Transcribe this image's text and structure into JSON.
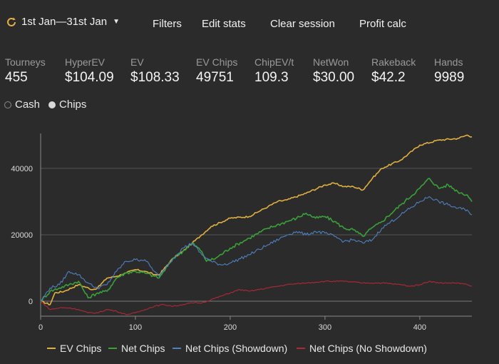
{
  "toolbar": {
    "date_range": "1st Jan—31st Jan",
    "filters": "Filters",
    "edit_stats": "Edit stats",
    "clear_session": "Clear session",
    "profit_calc": "Profit calc"
  },
  "stats": [
    {
      "label": "Tourneys",
      "value": "455"
    },
    {
      "label": "HyperEV",
      "value": "$104.09"
    },
    {
      "label": "EV",
      "value": "$108.33"
    },
    {
      "label": "EV Chips",
      "value": "49751"
    },
    {
      "label": "ChipEV/t",
      "value": "109.3"
    },
    {
      "label": "NetWon",
      "value": "$30.00"
    },
    {
      "label": "Rakeback",
      "value": "$42.2"
    },
    {
      "label": "Hands",
      "value": "9989"
    }
  ],
  "mode": {
    "options": [
      "Cash",
      "Chips"
    ],
    "selected": "Chips"
  },
  "chart_data": {
    "type": "line",
    "x_ticks": [
      0,
      100,
      200,
      300,
      400
    ],
    "y_ticks": [
      0,
      20000,
      40000
    ],
    "xlim": [
      0,
      455
    ],
    "ylim": [
      -4500,
      50500
    ],
    "grid": "horizontal",
    "legend_position": "bottom",
    "series": [
      {
        "name": "EV Chips",
        "color": "#e0b040",
        "x": [
          0,
          10,
          15,
          25,
          40,
          55,
          60,
          70,
          80,
          90,
          100,
          110,
          120,
          125,
          140,
          150,
          160,
          170,
          180,
          200,
          220,
          240,
          250,
          260,
          280,
          300,
          310,
          320,
          330,
          340,
          350,
          360,
          380,
          400,
          420,
          440,
          450,
          455
        ],
        "y": [
          0,
          -1000,
          2500,
          3000,
          5000,
          3500,
          4000,
          7000,
          7500,
          8500,
          9500,
          9000,
          8000,
          8000,
          13000,
          15000,
          17500,
          20000,
          22500,
          25000,
          25500,
          28500,
          30000,
          30500,
          32500,
          35000,
          35500,
          34500,
          34500,
          33500,
          37000,
          40000,
          42500,
          47000,
          48500,
          49000,
          50000,
          49500
        ]
      },
      {
        "name": "Net Chips",
        "color": "#3aa03a",
        "x": [
          0,
          10,
          20,
          30,
          40,
          50,
          60,
          70,
          80,
          90,
          100,
          110,
          120,
          125,
          140,
          150,
          160,
          170,
          175,
          185,
          200,
          220,
          240,
          260,
          270,
          280,
          290,
          300,
          310,
          320,
          330,
          340,
          345,
          360,
          380,
          400,
          410,
          420,
          430,
          440,
          450,
          455
        ],
        "y": [
          0,
          3000,
          4000,
          5000,
          6000,
          1000,
          2500,
          3000,
          7000,
          8500,
          9000,
          8500,
          7500,
          7000,
          13000,
          15000,
          17500,
          15000,
          12000,
          13000,
          16000,
          19000,
          22000,
          24000,
          25000,
          26500,
          25000,
          25500,
          24000,
          22000,
          21500,
          19500,
          21000,
          24000,
          29000,
          34000,
          37000,
          34000,
          35000,
          33000,
          32000,
          30000
        ]
      },
      {
        "name": "Net Chips (Showdown)",
        "color": "#4f80c0",
        "x": [
          0,
          10,
          20,
          30,
          40,
          50,
          55,
          60,
          70,
          80,
          90,
          100,
          110,
          120,
          125,
          140,
          150,
          160,
          170,
          180,
          190,
          200,
          220,
          240,
          260,
          270,
          280,
          290,
          300,
          310,
          320,
          330,
          340,
          350,
          360,
          380,
          400,
          410,
          420,
          430,
          440,
          450,
          455
        ],
        "y": [
          0,
          4000,
          5000,
          9000,
          8000,
          5500,
          4500,
          4000,
          5000,
          9000,
          12000,
          12500,
          12500,
          9000,
          7500,
          13000,
          16000,
          17500,
          14000,
          12000,
          11000,
          11500,
          14000,
          17000,
          20000,
          21000,
          20000,
          21000,
          20500,
          19500,
          18000,
          18500,
          17500,
          18500,
          22000,
          26000,
          30000,
          31500,
          30000,
          29000,
          28000,
          27500,
          26000
        ]
      },
      {
        "name": "Net Chips (No Showdown)",
        "color": "#b02838",
        "x": [
          0,
          10,
          20,
          30,
          40,
          50,
          60,
          70,
          80,
          90,
          100,
          110,
          120,
          130,
          140,
          150,
          160,
          170,
          180,
          190,
          200,
          210,
          220,
          240,
          260,
          280,
          300,
          320,
          340,
          360,
          380,
          390,
          400,
          410,
          420,
          430,
          440,
          450,
          455
        ],
        "y": [
          0,
          -2500,
          -2000,
          -2000,
          -2500,
          -3500,
          -3500,
          -2500,
          -3000,
          -4000,
          -3500,
          -2500,
          -1500,
          -1000,
          -1500,
          -1000,
          -500,
          -500,
          500,
          1500,
          2500,
          3500,
          3000,
          4000,
          5000,
          5500,
          6000,
          6000,
          5500,
          5500,
          5000,
          4500,
          5000,
          6000,
          5500,
          5500,
          5500,
          5000,
          4500
        ]
      }
    ]
  }
}
